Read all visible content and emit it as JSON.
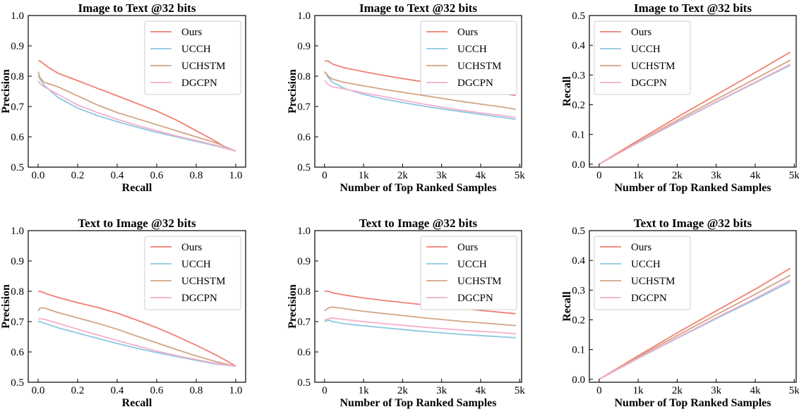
{
  "figure": {
    "colors": {
      "Ours": "#f07f72",
      "UCCH": "#8cc8e2",
      "UCHSTM": "#d2a585",
      "DGCPN": "#f5afcb"
    }
  },
  "chart_data": [
    {
      "type": "line",
      "title": "Image to Text @32 bits",
      "xlabel": "Recall",
      "ylabel": "Precision",
      "xlim": [
        -0.05,
        1.05
      ],
      "ylim": [
        0.5,
        1.0
      ],
      "xticks": [
        0.0,
        0.2,
        0.4,
        0.6,
        0.8,
        1.0
      ],
      "xticklabels": [
        "0.0",
        "0.2",
        "0.4",
        "0.6",
        "0.8",
        "1.0"
      ],
      "yticks": [
        0.5,
        0.6,
        0.7,
        0.8,
        0.9,
        1.0
      ],
      "yticklabels": [
        "0.5",
        "0.6",
        "0.7",
        "0.8",
        "0.9",
        "1.0"
      ],
      "legend": "top-right",
      "series": [
        {
          "name": "Ours",
          "x": [
            0.0,
            0.01,
            0.05,
            0.1,
            0.2,
            0.3,
            0.4,
            0.5,
            0.6,
            0.7,
            0.8,
            0.9,
            0.95,
            1.0
          ],
          "y": [
            0.85,
            0.85,
            0.83,
            0.81,
            0.785,
            0.76,
            0.735,
            0.71,
            0.685,
            0.655,
            0.62,
            0.585,
            0.565,
            0.553
          ]
        },
        {
          "name": "UCCH",
          "x": [
            0.0,
            0.01,
            0.03,
            0.1,
            0.2,
            0.3,
            0.4,
            0.5,
            0.6,
            0.7,
            0.8,
            0.9,
            1.0
          ],
          "y": [
            0.8,
            0.79,
            0.77,
            0.73,
            0.695,
            0.67,
            0.65,
            0.632,
            0.615,
            0.6,
            0.585,
            0.57,
            0.553
          ]
        },
        {
          "name": "UCHSTM",
          "x": [
            0.0,
            0.01,
            0.03,
            0.1,
            0.2,
            0.3,
            0.4,
            0.5,
            0.6,
            0.7,
            0.8,
            0.9,
            1.0
          ],
          "y": [
            0.815,
            0.795,
            0.78,
            0.765,
            0.735,
            0.705,
            0.68,
            0.66,
            0.64,
            0.62,
            0.6,
            0.58,
            0.553
          ]
        },
        {
          "name": "DGCPN",
          "x": [
            0.0,
            0.01,
            0.03,
            0.1,
            0.2,
            0.3,
            0.4,
            0.5,
            0.6,
            0.7,
            0.8,
            0.9,
            1.0
          ],
          "y": [
            0.785,
            0.775,
            0.765,
            0.74,
            0.705,
            0.68,
            0.658,
            0.638,
            0.62,
            0.603,
            0.588,
            0.572,
            0.553
          ]
        }
      ]
    },
    {
      "type": "line",
      "title": "Image to Text @32 bits",
      "xlabel": "Number of Top Ranked Samples",
      "ylabel": "Precision",
      "xlim": [
        -250,
        5050
      ],
      "ylim": [
        0.5,
        1.0
      ],
      "xticks": [
        0,
        1000,
        2000,
        3000,
        4000,
        5000
      ],
      "xticklabels": [
        "0",
        "1k",
        "2k",
        "3k",
        "4k",
        "5k"
      ],
      "yticks": [
        0.5,
        0.6,
        0.7,
        0.8,
        0.9,
        1.0
      ],
      "yticklabels": [
        "0.5",
        "0.6",
        "0.7",
        "0.8",
        "0.9",
        "1.0"
      ],
      "legend": "top-right",
      "series": [
        {
          "name": "Ours",
          "x": [
            0,
            100,
            200,
            500,
            1000,
            1500,
            2000,
            2500,
            3000,
            3500,
            4000,
            4500,
            4900
          ],
          "y": [
            0.85,
            0.85,
            0.84,
            0.828,
            0.815,
            0.803,
            0.792,
            0.782,
            0.772,
            0.763,
            0.754,
            0.745,
            0.736
          ]
        },
        {
          "name": "UCCH",
          "x": [
            0,
            100,
            200,
            500,
            1000,
            1500,
            2000,
            2500,
            3000,
            3500,
            4000,
            4500,
            4900
          ],
          "y": [
            0.815,
            0.795,
            0.78,
            0.76,
            0.74,
            0.725,
            0.713,
            0.702,
            0.692,
            0.683,
            0.674,
            0.665,
            0.658
          ]
        },
        {
          "name": "UCHSTM",
          "x": [
            0,
            100,
            200,
            500,
            1000,
            1500,
            2000,
            2500,
            3000,
            3500,
            4000,
            4500,
            4900
          ],
          "y": [
            0.815,
            0.8,
            0.79,
            0.78,
            0.768,
            0.757,
            0.747,
            0.737,
            0.727,
            0.717,
            0.708,
            0.699,
            0.691
          ]
        },
        {
          "name": "DGCPN",
          "x": [
            0,
            100,
            200,
            500,
            1000,
            1500,
            2000,
            2500,
            3000,
            3500,
            4000,
            4500,
            4900
          ],
          "y": [
            0.785,
            0.772,
            0.765,
            0.758,
            0.745,
            0.733,
            0.721,
            0.709,
            0.698,
            0.688,
            0.679,
            0.671,
            0.664
          ]
        }
      ]
    },
    {
      "type": "line",
      "title": "Image to Text @32 bits",
      "xlabel": "Number of Top Ranked Samples",
      "ylabel": "Recall",
      "xlim": [
        -250,
        5050
      ],
      "ylim": [
        -0.01,
        0.5
      ],
      "xticks": [
        0,
        1000,
        2000,
        3000,
        4000,
        5000
      ],
      "xticklabels": [
        "0",
        "1k",
        "2k",
        "3k",
        "4k",
        "5k"
      ],
      "yticks": [
        0.0,
        0.1,
        0.2,
        0.3,
        0.4,
        0.5
      ],
      "yticklabels": [
        "0.0",
        "0.1",
        "0.2",
        "0.3",
        "0.4",
        "0.5"
      ],
      "legend": "top-left",
      "series": [
        {
          "name": "Ours",
          "x": [
            0,
            1000,
            2000,
            3000,
            4000,
            4900
          ],
          "y": [
            0.0,
            0.08,
            0.158,
            0.233,
            0.308,
            0.377
          ]
        },
        {
          "name": "UCCH",
          "x": [
            0,
            1000,
            2000,
            3000,
            4000,
            4900
          ],
          "y": [
            0.0,
            0.072,
            0.141,
            0.208,
            0.274,
            0.333
          ]
        },
        {
          "name": "UCHSTM",
          "x": [
            0,
            1000,
            2000,
            3000,
            4000,
            4900
          ],
          "y": [
            0.0,
            0.075,
            0.148,
            0.218,
            0.287,
            0.35
          ]
        },
        {
          "name": "DGCPN",
          "x": [
            0,
            1000,
            2000,
            3000,
            4000,
            4900
          ],
          "y": [
            0.0,
            0.073,
            0.143,
            0.21,
            0.276,
            0.336
          ]
        }
      ]
    },
    {
      "type": "line",
      "title": "Text to Image @32 bits",
      "xlabel": "Recall",
      "ylabel": "Precision",
      "xlim": [
        -0.05,
        1.05
      ],
      "ylim": [
        0.5,
        1.0
      ],
      "xticks": [
        0.0,
        0.2,
        0.4,
        0.6,
        0.8,
        1.0
      ],
      "xticklabels": [
        "0.0",
        "0.2",
        "0.4",
        "0.6",
        "0.8",
        "1.0"
      ],
      "yticks": [
        0.5,
        0.6,
        0.7,
        0.8,
        0.9,
        1.0
      ],
      "yticklabels": [
        "0.5",
        "0.6",
        "0.7",
        "0.8",
        "0.9",
        "1.0"
      ],
      "legend": "top-right",
      "series": [
        {
          "name": "Ours",
          "x": [
            0.0,
            0.01,
            0.05,
            0.1,
            0.2,
            0.3,
            0.4,
            0.5,
            0.6,
            0.7,
            0.8,
            0.9,
            0.95,
            1.0
          ],
          "y": [
            0.8,
            0.8,
            0.79,
            0.78,
            0.762,
            0.747,
            0.728,
            0.705,
            0.68,
            0.652,
            0.622,
            0.59,
            0.572,
            0.553
          ]
        },
        {
          "name": "UCCH",
          "x": [
            0.0,
            0.01,
            0.03,
            0.1,
            0.2,
            0.3,
            0.4,
            0.5,
            0.6,
            0.7,
            0.8,
            0.9,
            1.0
          ],
          "y": [
            0.7,
            0.7,
            0.695,
            0.68,
            0.662,
            0.645,
            0.628,
            0.612,
            0.598,
            0.585,
            0.572,
            0.56,
            0.553
          ]
        },
        {
          "name": "UCHSTM",
          "x": [
            0.0,
            0.01,
            0.03,
            0.1,
            0.2,
            0.3,
            0.4,
            0.5,
            0.6,
            0.7,
            0.8,
            0.9,
            1.0
          ],
          "y": [
            0.735,
            0.745,
            0.745,
            0.73,
            0.712,
            0.695,
            0.675,
            0.652,
            0.63,
            0.608,
            0.587,
            0.568,
            0.553
          ]
        },
        {
          "name": "DGCPN",
          "x": [
            0.0,
            0.01,
            0.03,
            0.1,
            0.2,
            0.3,
            0.4,
            0.5,
            0.6,
            0.7,
            0.8,
            0.9,
            1.0
          ],
          "y": [
            0.708,
            0.71,
            0.708,
            0.695,
            0.675,
            0.656,
            0.638,
            0.62,
            0.603,
            0.588,
            0.575,
            0.562,
            0.553
          ]
        }
      ]
    },
    {
      "type": "line",
      "title": "Text to Image @32 bits",
      "xlabel": "Number of Top Ranked Samples",
      "ylabel": "Precision",
      "xlim": [
        -250,
        5050
      ],
      "ylim": [
        0.5,
        1.0
      ],
      "xticks": [
        0,
        1000,
        2000,
        3000,
        4000,
        5000
      ],
      "xticklabels": [
        "0",
        "1k",
        "2k",
        "3k",
        "4k",
        "5k"
      ],
      "yticks": [
        0.5,
        0.6,
        0.7,
        0.8,
        0.9,
        1.0
      ],
      "yticklabels": [
        "0.5",
        "0.6",
        "0.7",
        "0.8",
        "0.9",
        "1.0"
      ],
      "legend": "top-right",
      "series": [
        {
          "name": "Ours",
          "x": [
            0,
            100,
            200,
            500,
            1000,
            1500,
            2000,
            2500,
            3000,
            3500,
            4000,
            4500,
            4900
          ],
          "y": [
            0.8,
            0.8,
            0.795,
            0.788,
            0.778,
            0.77,
            0.763,
            0.756,
            0.75,
            0.743,
            0.737,
            0.731,
            0.726
          ]
        },
        {
          "name": "UCCH",
          "x": [
            0,
            100,
            200,
            500,
            1000,
            1500,
            2000,
            2500,
            3000,
            3500,
            4000,
            4500,
            4900
          ],
          "y": [
            0.7,
            0.705,
            0.7,
            0.693,
            0.686,
            0.68,
            0.674,
            0.668,
            0.663,
            0.658,
            0.654,
            0.65,
            0.647
          ]
        },
        {
          "name": "UCHSTM",
          "x": [
            0,
            100,
            200,
            500,
            1000,
            1500,
            2000,
            2500,
            3000,
            3500,
            4000,
            4500,
            4900
          ],
          "y": [
            0.735,
            0.745,
            0.748,
            0.743,
            0.734,
            0.727,
            0.72,
            0.713,
            0.707,
            0.701,
            0.696,
            0.691,
            0.687
          ]
        },
        {
          "name": "DGCPN",
          "x": [
            0,
            100,
            200,
            500,
            1000,
            1500,
            2000,
            2500,
            3000,
            3500,
            4000,
            4500,
            4900
          ],
          "y": [
            0.705,
            0.71,
            0.712,
            0.707,
            0.7,
            0.694,
            0.688,
            0.682,
            0.677,
            0.672,
            0.668,
            0.664,
            0.66
          ]
        }
      ]
    },
    {
      "type": "line",
      "title": "Text to Image @32 bits",
      "xlabel": "Number of Top Ranked Samples",
      "ylabel": "Recall",
      "xlim": [
        -250,
        5050
      ],
      "ylim": [
        -0.01,
        0.5
      ],
      "xticks": [
        0,
        1000,
        2000,
        3000,
        4000,
        5000
      ],
      "xticklabels": [
        "0",
        "1k",
        "2k",
        "3k",
        "4k",
        "5k"
      ],
      "yticks": [
        0.0,
        0.1,
        0.2,
        0.3,
        0.4,
        0.5
      ],
      "yticklabels": [
        "0.0",
        "0.1",
        "0.2",
        "0.3",
        "0.4",
        "0.5"
      ],
      "legend": "top-left",
      "series": [
        {
          "name": "Ours",
          "x": [
            0,
            1000,
            2000,
            3000,
            4000,
            4900
          ],
          "y": [
            0.0,
            0.079,
            0.156,
            0.23,
            0.303,
            0.373
          ]
        },
        {
          "name": "UCCH",
          "x": [
            0,
            1000,
            2000,
            3000,
            4000,
            4900
          ],
          "y": [
            0.0,
            0.07,
            0.138,
            0.204,
            0.268,
            0.328
          ]
        },
        {
          "name": "UCHSTM",
          "x": [
            0,
            1000,
            2000,
            3000,
            4000,
            4900
          ],
          "y": [
            0.0,
            0.075,
            0.147,
            0.217,
            0.286,
            0.35
          ]
        },
        {
          "name": "DGCPN",
          "x": [
            0,
            1000,
            2000,
            3000,
            4000,
            4900
          ],
          "y": [
            0.0,
            0.071,
            0.14,
            0.207,
            0.272,
            0.334
          ]
        }
      ]
    }
  ]
}
